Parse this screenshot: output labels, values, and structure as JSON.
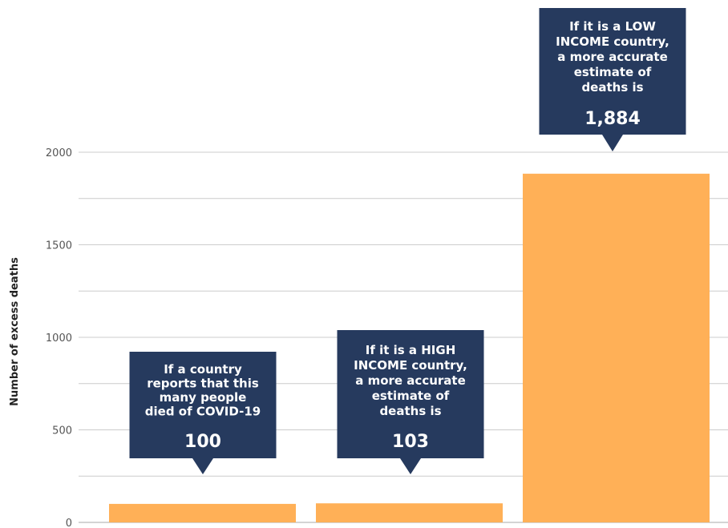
{
  "chart_data": {
    "type": "bar",
    "categories": [
      "",
      "",
      ""
    ],
    "values": [
      100,
      103,
      1884
    ],
    "ylabel": "Number of excess deaths",
    "ylim": [
      0,
      2000
    ],
    "yticks": [
      0,
      500,
      1000,
      1500,
      2000
    ],
    "grid": true,
    "colors": {
      "bar": "#FFB057",
      "callout": "#263A5E",
      "grid": "#cccccc"
    },
    "annotations": [
      {
        "lines": [
          "If a country",
          "reports that this",
          "many people",
          "died of COVID-19"
        ],
        "value": "100"
      },
      {
        "lines": [
          "If it is a HIGH",
          "INCOME country,",
          "a more accurate",
          "estimate of",
          "deaths is"
        ],
        "value": "103"
      },
      {
        "lines": [
          "If it is a LOW",
          "INCOME country,",
          "a more accurate",
          "estimate of",
          "deaths is"
        ],
        "value": "1,884"
      }
    ]
  }
}
